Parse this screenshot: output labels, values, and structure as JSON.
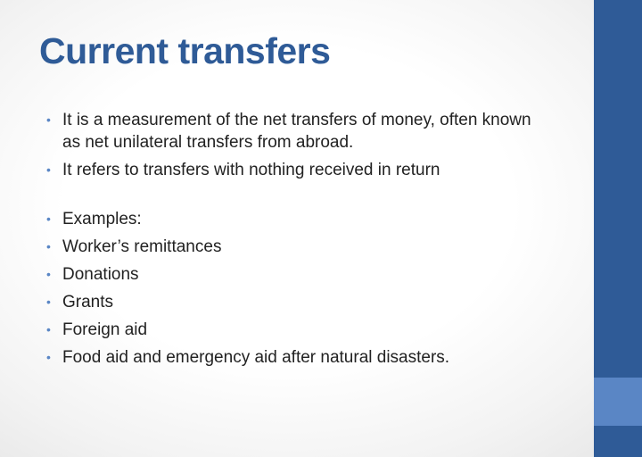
{
  "slide": {
    "title": "Current transfers",
    "bullet_glyph": "•",
    "bullets": [
      "It is a measurement of the net transfers of money, often known as net unilateral transfers from abroad.",
      "It refers to transfers with nothing received in return",
      "Examples:",
      "Worker’s remittances",
      "Donations",
      "Grants",
      "Foreign aid",
      "Food aid and emergency aid after natural disasters."
    ]
  },
  "colors": {
    "title": "#2f5b97",
    "sidebar": "#2f5b97",
    "sidebar_accent": "#5a86c5",
    "bullet_dot": "#5a86c5",
    "body_text": "#222222"
  }
}
